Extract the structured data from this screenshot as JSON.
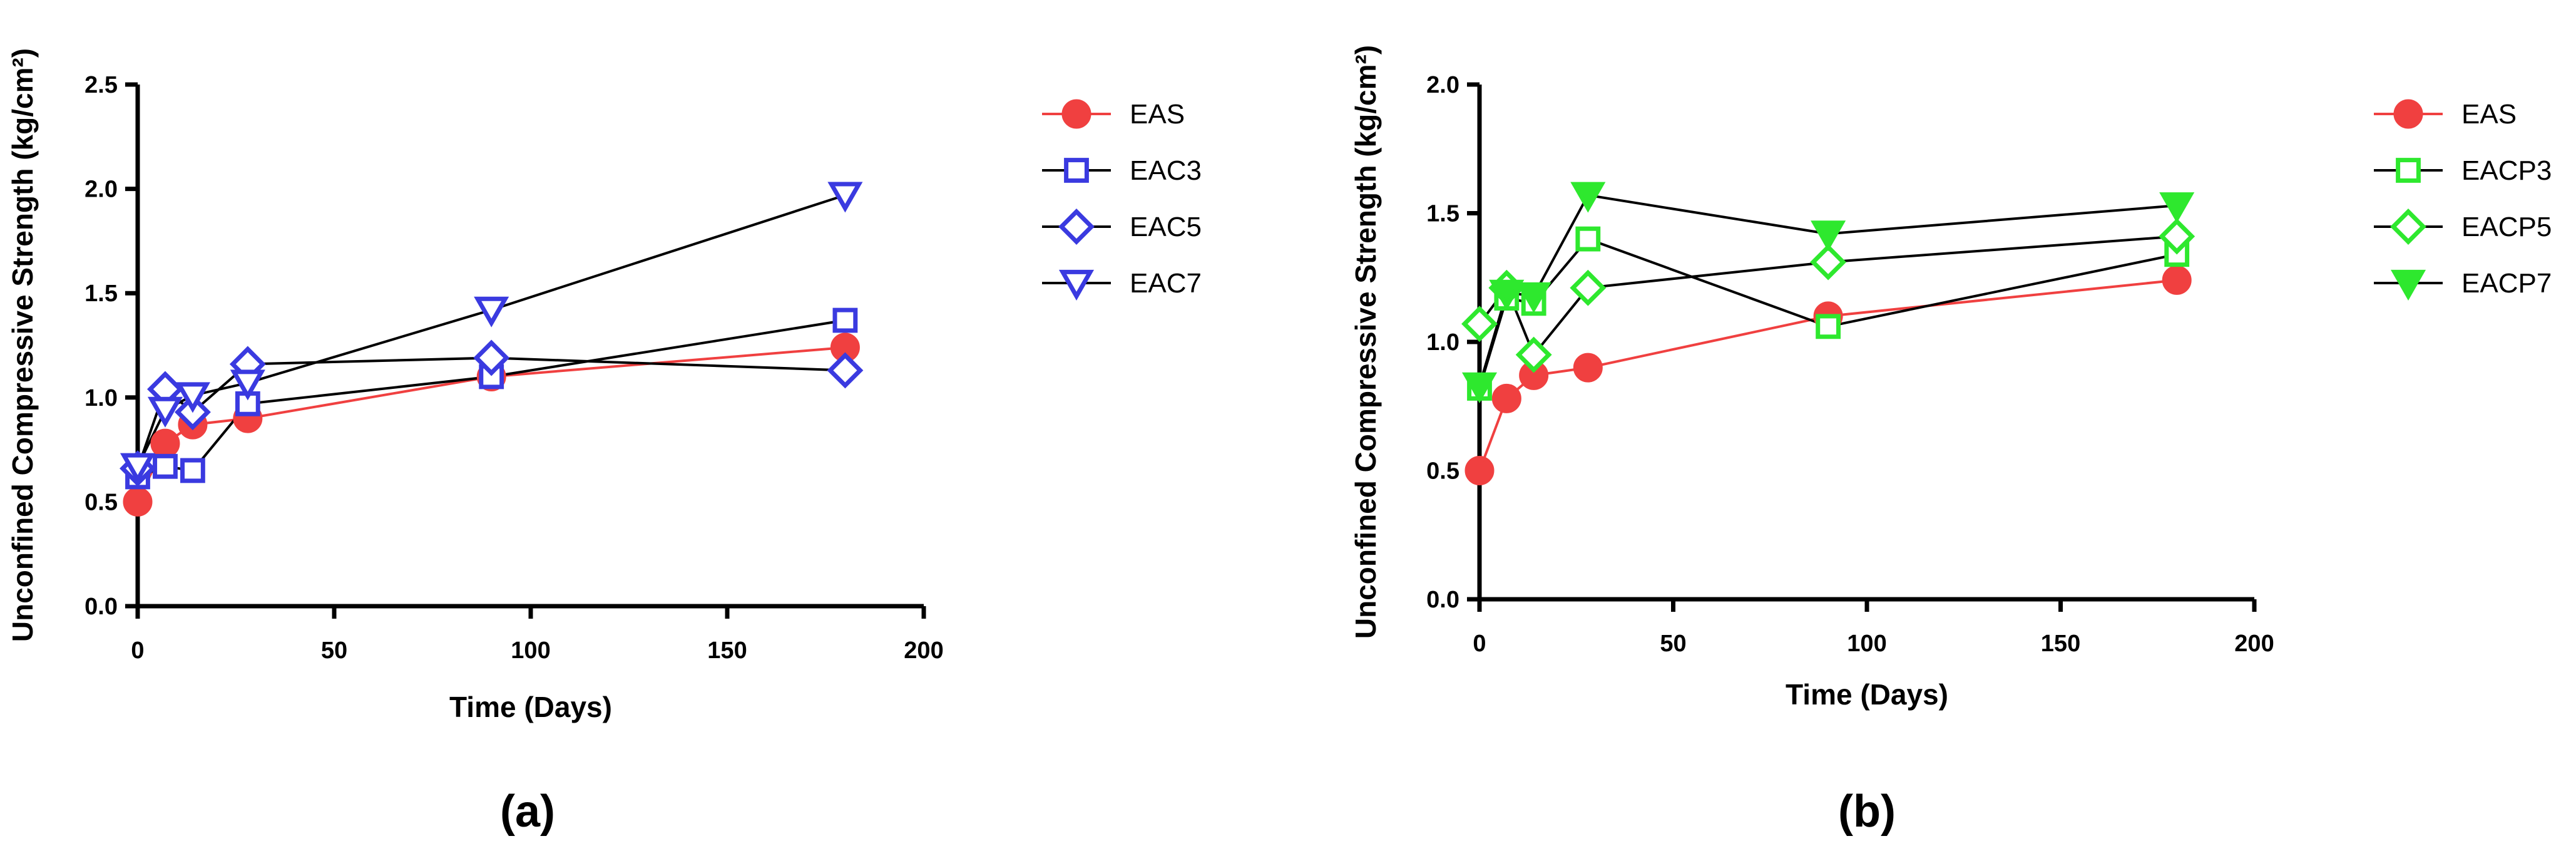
{
  "chart_data": [
    {
      "type": "line",
      "panel_label": "(a)",
      "xlabel": "Time (Days)",
      "ylabel": "Unconfined Compressive Strength (kg/cm²)",
      "xlim": [
        0,
        200
      ],
      "ylim": [
        0,
        2.5
      ],
      "xticks": [
        0,
        50,
        100,
        150,
        200
      ],
      "yticks": [
        0.0,
        0.5,
        1.0,
        1.5,
        2.0,
        2.5
      ],
      "xtick_labels": [
        "0",
        "50",
        "100",
        "150",
        "200"
      ],
      "ytick_labels": [
        "0.0",
        "0.5",
        "1.0",
        "1.5",
        "2.0",
        "2.5"
      ],
      "legend_position": "right",
      "series": [
        {
          "name": "EAS",
          "marker": "circle",
          "color": "#f04040",
          "line_color": "#f04040",
          "filled": true,
          "x": [
            0,
            7,
            14,
            28,
            90,
            180
          ],
          "y": [
            0.5,
            0.78,
            0.87,
            0.9,
            1.1,
            1.24
          ]
        },
        {
          "name": "EAC3",
          "marker": "square",
          "color": "#3a3ae0",
          "line_color": "#000000",
          "filled": false,
          "x": [
            0,
            7,
            14,
            28,
            90,
            180
          ],
          "y": [
            0.62,
            0.67,
            0.65,
            0.97,
            1.1,
            1.37
          ]
        },
        {
          "name": "EAC5",
          "marker": "diamond",
          "color": "#3a3ae0",
          "line_color": "#000000",
          "filled": false,
          "x": [
            0,
            7,
            14,
            28,
            90,
            180
          ],
          "y": [
            0.66,
            1.04,
            0.93,
            1.16,
            1.19,
            1.13
          ]
        },
        {
          "name": "EAC7",
          "marker": "triangle-down",
          "color": "#3a3ae0",
          "line_color": "#000000",
          "filled": false,
          "x": [
            0,
            7,
            14,
            28,
            90,
            180
          ],
          "y": [
            0.67,
            0.94,
            1.01,
            1.07,
            1.42,
            1.97
          ]
        }
      ]
    },
    {
      "type": "line",
      "panel_label": "(b)",
      "xlabel": "Time (Days)",
      "ylabel": "Unconfined Compressive Strength (kg/cm²)",
      "xlim": [
        0,
        200
      ],
      "ylim": [
        0,
        2.0
      ],
      "xticks": [
        0,
        50,
        100,
        150,
        200
      ],
      "yticks": [
        0.0,
        0.5,
        1.0,
        1.5,
        2.0
      ],
      "xtick_labels": [
        "0",
        "50",
        "100",
        "150",
        "200"
      ],
      "ytick_labels": [
        "0.0",
        "0.5",
        "1.0",
        "1.5",
        "2.0"
      ],
      "legend_position": "right",
      "series": [
        {
          "name": "EAS",
          "marker": "circle",
          "color": "#f04040",
          "line_color": "#f04040",
          "filled": true,
          "x": [
            0,
            7,
            14,
            28,
            90,
            180
          ],
          "y": [
            0.5,
            0.78,
            0.87,
            0.9,
            1.1,
            1.24
          ]
        },
        {
          "name": "EACP3",
          "marker": "square",
          "color": "#2ee82e",
          "line_color": "#000000",
          "filled": false,
          "x": [
            0,
            7,
            14,
            28,
            90,
            180
          ],
          "y": [
            0.82,
            1.17,
            1.15,
            1.4,
            1.06,
            1.34
          ]
        },
        {
          "name": "EACP5",
          "marker": "diamond",
          "color": "#2ee82e",
          "line_color": "#000000",
          "filled": false,
          "x": [
            0,
            7,
            14,
            28,
            90,
            180
          ],
          "y": [
            1.07,
            1.21,
            0.95,
            1.21,
            1.31,
            1.41
          ]
        },
        {
          "name": "EACP7",
          "marker": "triangle-down",
          "color": "#2ee82e",
          "line_color": "#000000",
          "filled": true,
          "x": [
            0,
            7,
            14,
            28,
            90,
            180
          ],
          "y": [
            0.83,
            1.19,
            1.18,
            1.57,
            1.42,
            1.53
          ]
        }
      ]
    }
  ]
}
